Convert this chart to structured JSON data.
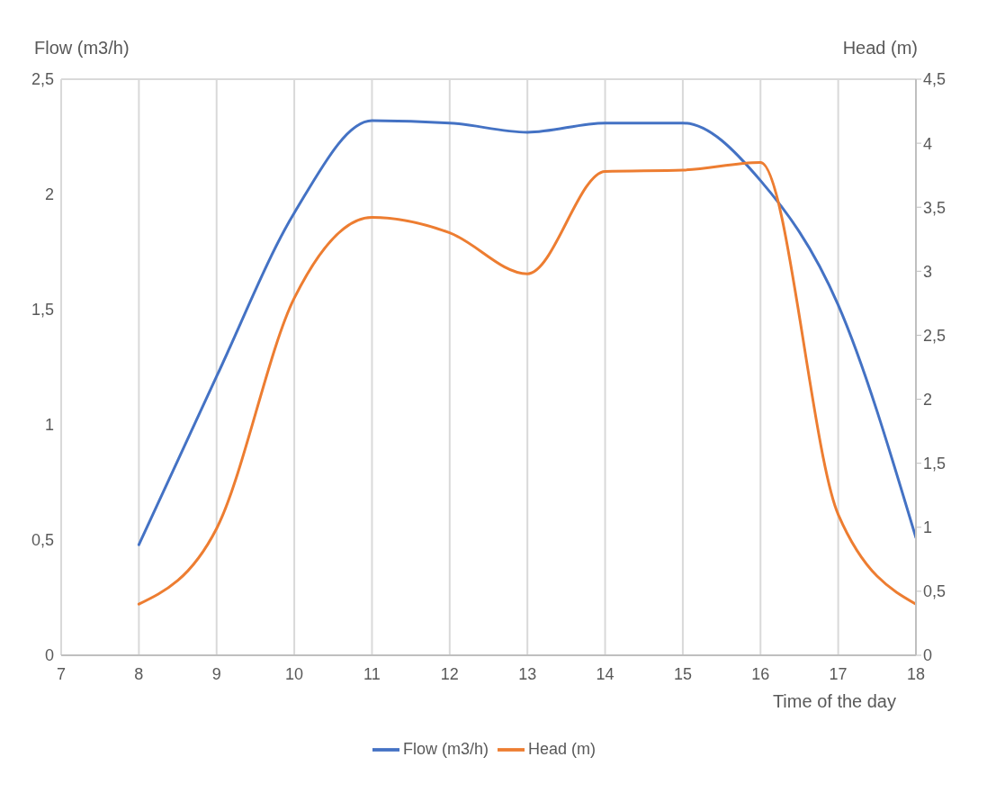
{
  "chart_data": {
    "type": "line",
    "xlabel": "Time of the day",
    "ylabel": "Flow (m3/h)",
    "y2label": "Head (m)",
    "x": [
      8,
      9,
      10,
      11,
      12,
      13,
      14,
      15,
      16,
      17,
      18
    ],
    "series": [
      {
        "name": "Flow (m3/h)",
        "color": "#4472c4",
        "values": [
          0.48,
          1.21,
          1.92,
          2.32,
          2.31,
          2.27,
          2.31,
          2.31,
          2.06,
          1.52,
          0.51
        ]
      },
      {
        "name": "Head (m)",
        "color": "#ed7d31",
        "axis": "y2",
        "values": [
          0.4,
          0.99,
          2.79,
          3.42,
          3.3,
          2.98,
          3.78,
          3.79,
          3.85,
          1.1,
          0.4
        ]
      }
    ],
    "xlim": [
      7,
      18
    ],
    "xticks": [
      7,
      8,
      9,
      10,
      11,
      12,
      13,
      14,
      15,
      16,
      17,
      18
    ],
    "ylim": [
      0,
      2.5
    ],
    "yticks": [
      0,
      {
        "value": 0.5,
        "label": "0,5"
      },
      1,
      {
        "value": 1.5,
        "label": "1,5"
      },
      2,
      {
        "value": 2.5,
        "label": "2,5"
      }
    ],
    "y2lim": [
      0,
      4.5
    ],
    "y2ticks": [
      0,
      {
        "value": 0.5,
        "label": "0,5"
      },
      1,
      {
        "value": 1.5,
        "label": "1,5"
      },
      2,
      {
        "value": 2.5,
        "label": "2,5"
      },
      3,
      {
        "value": 3.5,
        "label": "3,5"
      },
      4,
      {
        "value": 4.5,
        "label": "4,5"
      }
    ],
    "grid": true,
    "legend": "bottom",
    "marker": "none",
    "line_style": "solid"
  }
}
